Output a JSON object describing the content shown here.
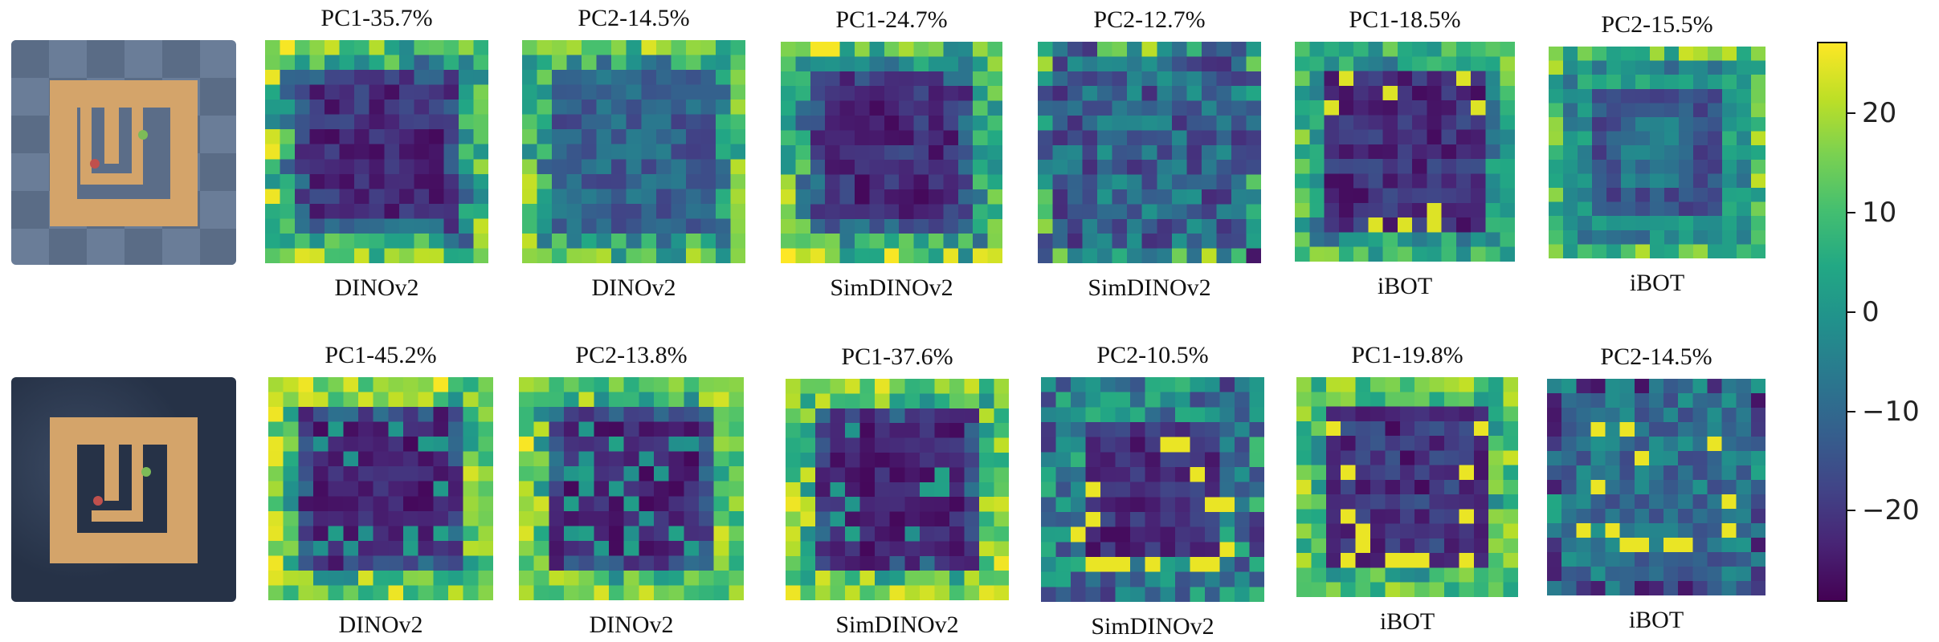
{
  "chart_data": {
    "type": "heatmap",
    "grid_size": 15,
    "rows": [
      {
        "environment": "light-checkerboard-maze",
        "panels": [
          {
            "title": "PC1-35.7%",
            "model": "DINOv2",
            "pattern": "frame-dark-center"
          },
          {
            "title": "PC2-14.5%",
            "model": "DINOv2",
            "pattern": "frame-mid-center"
          },
          {
            "title": "PC1-24.7%",
            "model": "SimDINOv2",
            "pattern": "frame-dark-center"
          },
          {
            "title": "PC2-12.7%",
            "model": "SimDINOv2",
            "pattern": "mid-noisy"
          },
          {
            "title": "PC1-18.5%",
            "model": "iBOT",
            "pattern": "ibot-structure"
          },
          {
            "title": "PC2-15.5%",
            "model": "iBOT",
            "pattern": "ibot-rings"
          }
        ]
      },
      {
        "environment": "dark-maze",
        "panels": [
          {
            "title": "PC1-45.2%",
            "model": "DINOv2",
            "pattern": "frame-dark-center-bright"
          },
          {
            "title": "PC2-13.8%",
            "model": "DINOv2",
            "pattern": "frame-dark-center-bright"
          },
          {
            "title": "PC1-37.6%",
            "model": "SimDINOv2",
            "pattern": "frame-dark-center-bright"
          },
          {
            "title": "PC2-10.5%",
            "model": "SimDINOv2",
            "pattern": "ring-dark-center"
          },
          {
            "title": "PC1-19.8%",
            "model": "iBOT",
            "pattern": "ibot-box"
          },
          {
            "title": "PC2-14.5%",
            "model": "iBOT",
            "pattern": "ibot-dots"
          }
        ]
      }
    ],
    "colorbar": {
      "colormap": "viridis",
      "range": [
        -29,
        27
      ],
      "ticks": [
        20,
        10,
        0,
        -10,
        -20
      ],
      "tick_labels": [
        "20",
        "10",
        "0",
        "−10",
        "−20"
      ]
    }
  }
}
